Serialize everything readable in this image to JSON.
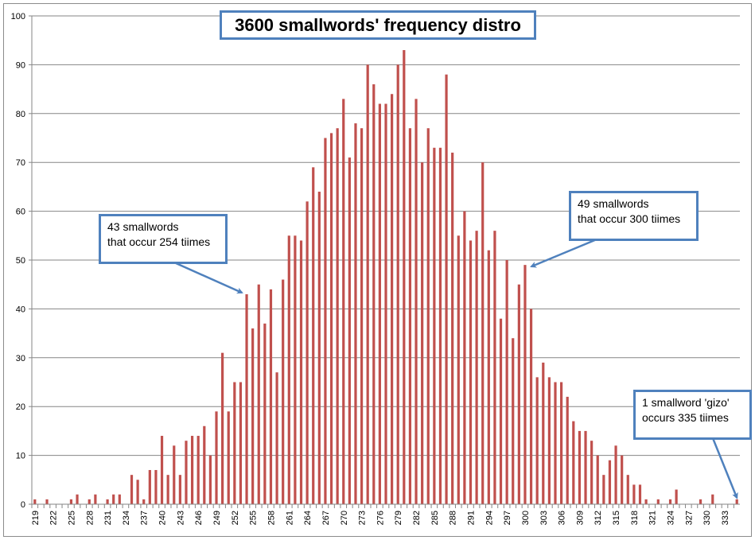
{
  "chart_data": {
    "type": "bar",
    "title": "3600 smallwords' frequency distro",
    "xlabel": "",
    "ylabel": "",
    "ylim": [
      0,
      100
    ],
    "yticks": [
      0,
      10,
      20,
      30,
      40,
      50,
      60,
      70,
      80,
      90,
      100
    ],
    "grid": true,
    "legend": "none",
    "bar_color": "#c0504d",
    "x_label_every": 3,
    "categories": [
      219,
      220,
      221,
      222,
      223,
      224,
      225,
      226,
      227,
      228,
      229,
      230,
      231,
      232,
      233,
      234,
      235,
      236,
      237,
      238,
      239,
      240,
      241,
      242,
      243,
      244,
      245,
      246,
      247,
      248,
      249,
      250,
      251,
      252,
      253,
      254,
      255,
      256,
      257,
      258,
      259,
      260,
      261,
      262,
      263,
      264,
      265,
      266,
      267,
      268,
      269,
      270,
      271,
      272,
      273,
      274,
      275,
      276,
      277,
      278,
      279,
      280,
      281,
      282,
      283,
      284,
      285,
      286,
      287,
      288,
      289,
      290,
      291,
      292,
      293,
      294,
      295,
      296,
      297,
      298,
      299,
      300,
      301,
      302,
      303,
      304,
      305,
      306,
      307,
      308,
      309,
      310,
      311,
      312,
      313,
      314,
      315,
      316,
      317,
      318,
      319,
      320,
      321,
      322,
      323,
      324,
      325,
      326,
      327,
      328,
      329,
      330,
      331,
      332,
      333,
      334,
      335
    ],
    "values": [
      1,
      0,
      1,
      0,
      0,
      0,
      1,
      2,
      0,
      1,
      2,
      0,
      1,
      2,
      2,
      0,
      6,
      5,
      1,
      7,
      7,
      14,
      6,
      12,
      6,
      13,
      14,
      14,
      16,
      10,
      19,
      31,
      19,
      25,
      25,
      43,
      36,
      45,
      37,
      44,
      27,
      46,
      55,
      55,
      54,
      62,
      69,
      64,
      75,
      76,
      77,
      83,
      71,
      78,
      77,
      90,
      86,
      82,
      82,
      84,
      90,
      93,
      77,
      83,
      70,
      77,
      73,
      73,
      88,
      72,
      55,
      60,
      54,
      56,
      70,
      52,
      56,
      38,
      50,
      34,
      45,
      49,
      40,
      26,
      29,
      26,
      25,
      25,
      22,
      17,
      15,
      15,
      13,
      10,
      6,
      9,
      12,
      10,
      6,
      4,
      4,
      1,
      0,
      1,
      0,
      1,
      3,
      0,
      0,
      0,
      1,
      0,
      2,
      0,
      0,
      0,
      1
    ],
    "annotations": [
      {
        "lines": [
          "43 smallwords",
          "that occur 254 tiimes"
        ],
        "target_category": 254,
        "target_value": 43
      },
      {
        "lines": [
          "49 smallwords",
          "that occur 300 tiimes"
        ],
        "target_category": 300,
        "target_value": 49
      },
      {
        "lines": [
          "1 smallword 'gizo'",
          "occurs 335 tiimes"
        ],
        "target_category": 335,
        "target_value": 1
      }
    ],
    "annotation_color": "#4f81bd"
  }
}
